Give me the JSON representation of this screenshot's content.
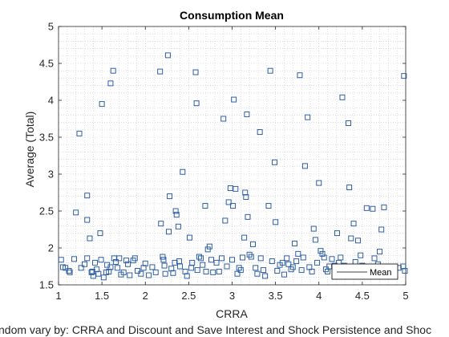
{
  "chart_data": {
    "type": "scatter",
    "title": "Consumption Mean",
    "xlabel": "CRRA",
    "ylabel": "Average (Total)",
    "footer_text": "ndom vary by: CRRA and Discount and Save Interest and Shock Persistence and Shoc",
    "xlim": [
      1,
      5
    ],
    "ylim": [
      1.5,
      5
    ],
    "x_ticks": [
      "1",
      "1.5",
      "2",
      "2.5",
      "3",
      "3.5",
      "4",
      "4.5",
      "5"
    ],
    "y_ticks": [
      "1.5",
      "2",
      "2.5",
      "3",
      "3.5",
      "4",
      "4.5",
      "5"
    ],
    "grid": "dotted-minor",
    "legend": {
      "placement": "bottom-right",
      "entries": [
        "Mean"
      ]
    },
    "marker": "square",
    "marker_color": "#2f5fa3",
    "series": [
      {
        "name": "Mean",
        "points": [
          [
            1.03,
            1.84
          ],
          [
            1.05,
            1.74
          ],
          [
            1.08,
            1.73
          ],
          [
            1.12,
            1.69
          ],
          [
            1.13,
            1.67
          ],
          [
            1.18,
            1.85
          ],
          [
            1.2,
            2.48
          ],
          [
            1.24,
            3.55
          ],
          [
            1.26,
            1.73
          ],
          [
            1.3,
            1.78
          ],
          [
            1.33,
            2.71
          ],
          [
            1.33,
            2.38
          ],
          [
            1.33,
            1.86
          ],
          [
            1.36,
            2.13
          ],
          [
            1.38,
            1.67
          ],
          [
            1.39,
            1.68
          ],
          [
            1.4,
            1.62
          ],
          [
            1.42,
            1.8
          ],
          [
            1.44,
            1.71
          ],
          [
            1.46,
            1.65
          ],
          [
            1.48,
            2.2
          ],
          [
            1.49,
            1.84
          ],
          [
            1.5,
            3.95
          ],
          [
            1.52,
            1.6
          ],
          [
            1.55,
            1.67
          ],
          [
            1.56,
            1.77
          ],
          [
            1.58,
            1.68
          ],
          [
            1.6,
            4.23
          ],
          [
            1.6,
            1.74
          ],
          [
            1.63,
            4.4
          ],
          [
            1.64,
            1.86
          ],
          [
            1.66,
            1.81
          ],
          [
            1.68,
            1.73
          ],
          [
            1.7,
            1.86
          ],
          [
            1.72,
            1.64
          ],
          [
            1.75,
            1.67
          ],
          [
            1.78,
            1.83
          ],
          [
            1.8,
            1.78
          ],
          [
            1.82,
            1.63
          ],
          [
            1.86,
            1.83
          ],
          [
            1.88,
            1.86
          ],
          [
            1.91,
            1.69
          ],
          [
            1.95,
            1.65
          ],
          [
            1.98,
            1.73
          ],
          [
            2.0,
            1.79
          ],
          [
            2.04,
            1.63
          ],
          [
            2.08,
            1.74
          ],
          [
            2.12,
            1.67
          ],
          [
            2.17,
            4.39
          ],
          [
            2.18,
            2.33
          ],
          [
            2.2,
            1.88
          ],
          [
            2.21,
            1.84
          ],
          [
            2.22,
            1.76
          ],
          [
            2.23,
            1.65
          ],
          [
            2.26,
            4.61
          ],
          [
            2.27,
            2.22
          ],
          [
            2.28,
            2.7
          ],
          [
            2.3,
            1.72
          ],
          [
            2.32,
            1.66
          ],
          [
            2.34,
            1.8
          ],
          [
            2.35,
            2.5
          ],
          [
            2.36,
            2.45
          ],
          [
            2.38,
            2.29
          ],
          [
            2.39,
            1.82
          ],
          [
            2.4,
            1.75
          ],
          [
            2.43,
            3.03
          ],
          [
            2.46,
            1.68
          ],
          [
            2.48,
            1.62
          ],
          [
            2.51,
            2.14
          ],
          [
            2.53,
            1.73
          ],
          [
            2.54,
            1.8
          ],
          [
            2.58,
            4.38
          ],
          [
            2.59,
            3.96
          ],
          [
            2.6,
            1.7
          ],
          [
            2.62,
            1.88
          ],
          [
            2.64,
            1.86
          ],
          [
            2.66,
            1.77
          ],
          [
            2.69,
            2.57
          ],
          [
            2.7,
            1.68
          ],
          [
            2.72,
            1.98
          ],
          [
            2.74,
            2.02
          ],
          [
            2.76,
            1.84
          ],
          [
            2.78,
            1.67
          ],
          [
            2.82,
            1.8
          ],
          [
            2.85,
            1.68
          ],
          [
            2.88,
            1.86
          ],
          [
            2.9,
            3.75
          ],
          [
            2.92,
            2.37
          ],
          [
            2.94,
            1.75
          ],
          [
            2.96,
            2.62
          ],
          [
            2.98,
            2.81
          ],
          [
            3.0,
            1.84
          ],
          [
            3.01,
            2.57
          ],
          [
            3.02,
            4.01
          ],
          [
            3.04,
            2.8
          ],
          [
            3.06,
            1.65
          ],
          [
            3.08,
            1.73
          ],
          [
            3.1,
            1.7
          ],
          [
            3.12,
            1.87
          ],
          [
            3.14,
            2.14
          ],
          [
            3.15,
            2.75
          ],
          [
            3.16,
            2.69
          ],
          [
            3.17,
            3.81
          ],
          [
            3.18,
            2.42
          ],
          [
            3.2,
            1.91
          ],
          [
            3.22,
            1.88
          ],
          [
            3.24,
            2.05
          ],
          [
            3.27,
            1.73
          ],
          [
            3.29,
            1.65
          ],
          [
            3.32,
            3.57
          ],
          [
            3.33,
            1.86
          ],
          [
            3.36,
            1.7
          ],
          [
            3.38,
            1.62
          ],
          [
            3.42,
            2.57
          ],
          [
            3.44,
            4.4
          ],
          [
            3.46,
            1.82
          ],
          [
            3.49,
            3.16
          ],
          [
            3.5,
            2.35
          ],
          [
            3.52,
            1.69
          ],
          [
            3.55,
            1.77
          ],
          [
            3.58,
            1.8
          ],
          [
            3.6,
            1.64
          ],
          [
            3.63,
            1.86
          ],
          [
            3.65,
            1.78
          ],
          [
            3.68,
            1.71
          ],
          [
            3.7,
            1.74
          ],
          [
            3.72,
            2.06
          ],
          [
            3.74,
            1.82
          ],
          [
            3.76,
            1.92
          ],
          [
            3.78,
            4.34
          ],
          [
            3.8,
            1.7
          ],
          [
            3.82,
            1.87
          ],
          [
            3.84,
            3.11
          ],
          [
            3.87,
            3.77
          ],
          [
            3.89,
            1.74
          ],
          [
            3.92,
            1.68
          ],
          [
            3.94,
            2.26
          ],
          [
            3.96,
            2.11
          ],
          [
            3.98,
            1.8
          ],
          [
            4.0,
            2.88
          ],
          [
            4.02,
            1.96
          ],
          [
            4.04,
            1.92
          ],
          [
            4.06,
            1.87
          ],
          [
            4.08,
            1.71
          ],
          [
            4.1,
            1.68
          ],
          [
            4.12,
            1.75
          ],
          [
            4.15,
            1.85
          ],
          [
            4.18,
            1.76
          ],
          [
            4.21,
            2.2
          ],
          [
            4.23,
            1.8
          ],
          [
            4.25,
            1.87
          ],
          [
            4.27,
            4.04
          ],
          [
            4.29,
            1.76
          ],
          [
            4.31,
            1.67
          ],
          [
            4.34,
            3.69
          ],
          [
            4.35,
            2.82
          ],
          [
            4.37,
            2.13
          ],
          [
            4.4,
            2.33
          ],
          [
            4.42,
            1.81
          ],
          [
            4.45,
            2.1
          ],
          [
            4.48,
            1.9
          ],
          [
            4.5,
            1.76
          ],
          [
            4.52,
            1.69
          ],
          [
            4.55,
            2.54
          ],
          [
            4.57,
            1.67
          ],
          [
            4.6,
            1.74
          ],
          [
            4.62,
            2.53
          ],
          [
            4.64,
            1.86
          ],
          [
            4.68,
            1.78
          ],
          [
            4.7,
            1.95
          ],
          [
            4.72,
            2.25
          ],
          [
            4.75,
            2.55
          ],
          [
            4.8,
            1.71
          ],
          [
            4.86,
            1.68
          ],
          [
            4.92,
            1.73
          ],
          [
            4.97,
            1.75
          ],
          [
            4.98,
            4.33
          ],
          [
            4.99,
            1.69
          ]
        ]
      }
    ]
  }
}
